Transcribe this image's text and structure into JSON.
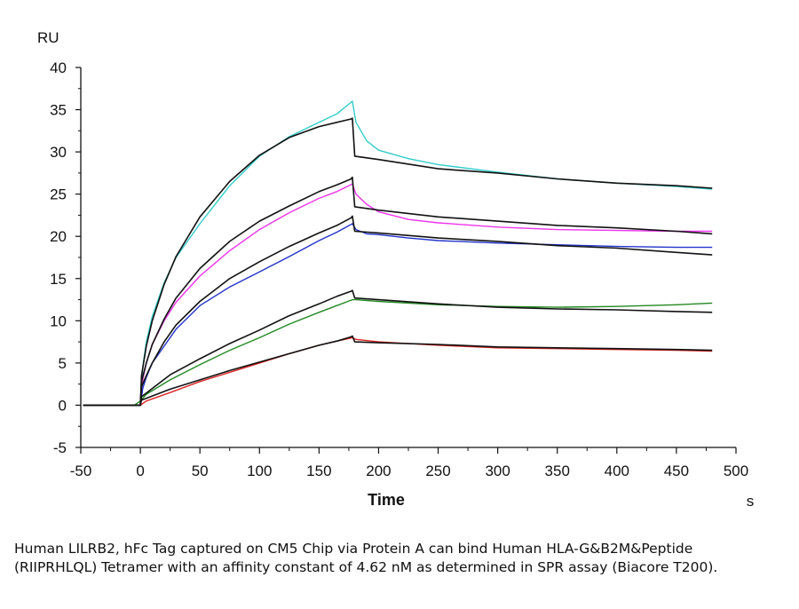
{
  "chart_data": {
    "type": "line",
    "ylabel": "RU",
    "xlabel": "Time",
    "x_unit": "s",
    "xlim": [
      -50,
      500
    ],
    "ylim": [
      -5,
      40
    ],
    "x_ticks": [
      -50,
      0,
      50,
      100,
      150,
      200,
      250,
      300,
      350,
      400,
      450,
      500
    ],
    "y_ticks": [
      -5,
      0,
      5,
      10,
      15,
      20,
      25,
      30,
      35,
      40
    ],
    "grid": false,
    "colors": {
      "cyan": "#33cccc",
      "magenta": "#ee33ee",
      "blue": "#2233cc",
      "green": "#228822",
      "red": "#dd2222",
      "fit": "#111111"
    },
    "series": [
      {
        "color": "cyan",
        "x": [
          -48,
          -5,
          0,
          2,
          5,
          10,
          20,
          30,
          50,
          75,
          100,
          125,
          150,
          165,
          178,
          181,
          190,
          200,
          225,
          250,
          300,
          350,
          400,
          450,
          480
        ],
        "y": [
          0,
          0,
          0,
          4.5,
          7.5,
          10.5,
          14.5,
          17.5,
          21.5,
          26,
          29.5,
          31.8,
          33.5,
          34.5,
          36,
          33.5,
          31.3,
          30.2,
          29.2,
          28.5,
          27.6,
          26.8,
          26.3,
          25.9,
          25.6
        ]
      },
      {
        "color": "magenta",
        "x": [
          -48,
          -5,
          0,
          2,
          5,
          10,
          20,
          30,
          50,
          75,
          100,
          125,
          150,
          165,
          178,
          181,
          190,
          200,
          225,
          250,
          300,
          350,
          400,
          450,
          480
        ],
        "y": [
          0,
          0,
          0,
          3,
          5,
          7.2,
          10,
          12.2,
          15.3,
          18.3,
          20.8,
          22.8,
          24.5,
          25.3,
          26.2,
          25,
          23.8,
          22.9,
          22,
          21.6,
          21.1,
          20.8,
          20.7,
          20.6,
          20.6
        ]
      },
      {
        "color": "blue",
        "x": [
          -48,
          -5,
          0,
          2,
          5,
          10,
          20,
          30,
          50,
          75,
          100,
          125,
          150,
          165,
          178,
          181,
          190,
          200,
          225,
          250,
          300,
          350,
          400,
          450,
          480
        ],
        "y": [
          0,
          0,
          0,
          2,
          3.3,
          5,
          7,
          9,
          11.8,
          14,
          15.8,
          17.6,
          19.5,
          20.5,
          21.5,
          20.8,
          20.3,
          20.2,
          19.8,
          19.5,
          19.2,
          19,
          18.8,
          18.7,
          18.7
        ]
      },
      {
        "color": "green",
        "x": [
          -48,
          -5,
          0,
          5,
          25,
          50,
          75,
          100,
          125,
          150,
          165,
          178,
          181,
          200,
          250,
          300,
          350,
          400,
          450,
          480
        ],
        "y": [
          0,
          0,
          0.5,
          1.3,
          3,
          4.8,
          6.5,
          8,
          9.6,
          11,
          11.8,
          12.5,
          12.5,
          12.3,
          11.9,
          11.7,
          11.6,
          11.7,
          11.9,
          12.1
        ]
      },
      {
        "color": "red",
        "x": [
          -48,
          -5,
          0,
          5,
          25,
          50,
          75,
          100,
          125,
          150,
          165,
          178,
          181,
          200,
          250,
          300,
          350,
          400,
          450,
          480
        ],
        "y": [
          0,
          0,
          0,
          0.5,
          1.5,
          2.8,
          3.9,
          5,
          6.1,
          7.1,
          7.6,
          8,
          7.8,
          7.5,
          7.1,
          6.8,
          6.7,
          6.6,
          6.5,
          6.4
        ]
      },
      {
        "color": "fit",
        "x": [
          -48,
          0,
          1,
          5,
          10,
          20,
          30,
          50,
          75,
          100,
          125,
          150,
          165,
          177,
          178,
          180,
          200,
          250,
          300,
          350,
          400,
          450,
          480
        ],
        "y": [
          0,
          0,
          3.5,
          7,
          10,
          14.3,
          17.6,
          22.3,
          26.5,
          29.6,
          31.7,
          33,
          33.5,
          33.9,
          34,
          29.5,
          29.1,
          28,
          27.5,
          26.8,
          26.3,
          26,
          25.7
        ]
      },
      {
        "color": "fit",
        "x": [
          -48,
          0,
          1,
          5,
          10,
          20,
          30,
          50,
          75,
          100,
          125,
          150,
          165,
          177,
          178,
          180,
          200,
          250,
          300,
          350,
          400,
          450,
          480
        ],
        "y": [
          0,
          0,
          2.8,
          5,
          7.2,
          10.2,
          12.7,
          16.2,
          19.4,
          21.8,
          23.6,
          25.3,
          26.1,
          26.8,
          27,
          23.5,
          23.1,
          22.3,
          21.8,
          21.3,
          21,
          20.6,
          20.3
        ]
      },
      {
        "color": "fit",
        "x": [
          -48,
          0,
          1,
          5,
          10,
          20,
          30,
          50,
          75,
          100,
          125,
          150,
          165,
          177,
          178,
          180,
          200,
          250,
          300,
          350,
          400,
          450,
          480
        ],
        "y": [
          0,
          0,
          2.2,
          3.5,
          5,
          7.5,
          9.5,
          12.3,
          15,
          17,
          18.8,
          20.4,
          21.3,
          22.2,
          22.4,
          20.6,
          20.4,
          19.8,
          19.4,
          18.9,
          18.6,
          18.1,
          17.8
        ]
      },
      {
        "color": "fit",
        "x": [
          -48,
          0,
          1,
          25,
          50,
          75,
          100,
          125,
          150,
          165,
          177,
          178,
          180,
          200,
          250,
          300,
          350,
          400,
          450,
          480
        ],
        "y": [
          0,
          0,
          1,
          3.6,
          5.5,
          7.3,
          8.9,
          10.6,
          12,
          12.9,
          13.5,
          13.6,
          12.7,
          12.5,
          12,
          11.6,
          11.4,
          11.3,
          11.1,
          11
        ]
      },
      {
        "color": "fit",
        "x": [
          -48,
          0,
          1,
          25,
          50,
          75,
          100,
          125,
          150,
          165,
          177,
          178,
          180,
          200,
          250,
          300,
          350,
          400,
          450,
          480
        ],
        "y": [
          0,
          0,
          0.6,
          1.9,
          3,
          4.1,
          5.1,
          6.1,
          7.1,
          7.6,
          8.1,
          8.2,
          7.5,
          7.4,
          7.2,
          6.9,
          6.8,
          6.7,
          6.6,
          6.5
        ]
      }
    ]
  },
  "caption": "Human LILRB2, hFc Tag captured on CM5 Chip via Protein A can bind Human HLA-G&B2M&Peptide (RIIPRHLQL) Tetramer with an affinity constant of 4.62 nM as determined in SPR assay (Biacore T200)."
}
